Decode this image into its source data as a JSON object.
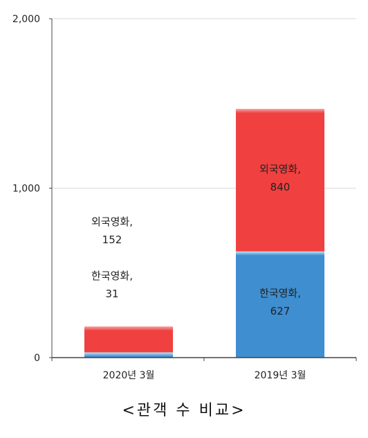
{
  "caption": "<관객 수 비교>",
  "chart_data": {
    "type": "bar",
    "stacked": true,
    "categories": [
      "2020년 3월",
      "2019년 3월"
    ],
    "series": [
      {
        "name": "한국영화",
        "values": [
          31,
          627
        ],
        "color": "#3f8ed0"
      },
      {
        "name": "외국영화",
        "values": [
          152,
          840
        ],
        "color": "#f04040"
      }
    ],
    "data_labels": [
      {
        "category": "2020년 3월",
        "series": "외국영화",
        "lines": [
          "외국영화,",
          "152"
        ]
      },
      {
        "category": "2020년 3월",
        "series": "한국영화",
        "lines": [
          "한국영화,",
          "31"
        ]
      },
      {
        "category": "2019년 3월",
        "series": "외국영화",
        "lines": [
          "외국영화,",
          "840"
        ]
      },
      {
        "category": "2019년 3월",
        "series": "한국영화",
        "lines": [
          "한국영화,",
          "627"
        ]
      }
    ],
    "yticks": [
      "2,000",
      "1,000",
      "0"
    ],
    "ytick_values": [
      2000,
      1000,
      0
    ],
    "ylim": [
      0,
      2000
    ],
    "grid": true,
    "legend": "none",
    "title": "",
    "xlabel": "",
    "ylabel": ""
  }
}
